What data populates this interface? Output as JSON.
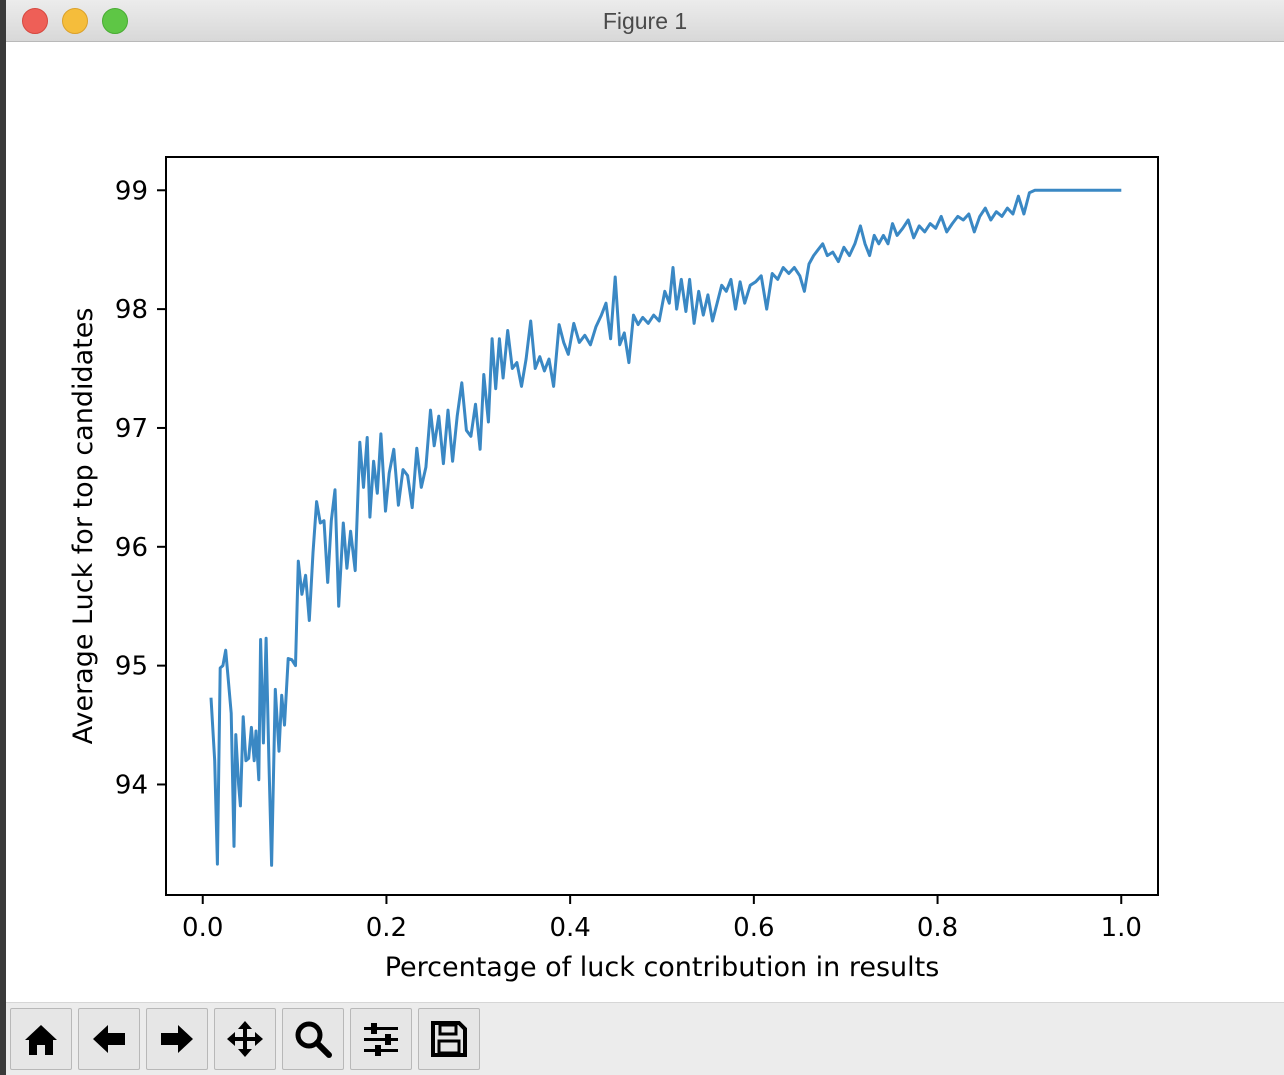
{
  "window": {
    "title": "Figure 1"
  },
  "toolbar": {
    "buttons": [
      "home-icon",
      "back-arrow-icon",
      "forward-arrow-icon",
      "pan-icon",
      "zoom-icon",
      "configure-subplots-icon",
      "save-icon"
    ]
  },
  "colors": {
    "line": "#3a88c4",
    "axes": "#000000"
  },
  "chart_data": {
    "type": "line",
    "xlabel": "Percentage of luck contribution in results",
    "ylabel": "Average Luck for top candidates",
    "xlim": [
      -0.04,
      1.04
    ],
    "ylim": [
      93.07,
      99.28
    ],
    "xticks": [
      0.0,
      0.2,
      0.4,
      0.6,
      0.8,
      1.0
    ],
    "xtick_labels": [
      "0.0",
      "0.2",
      "0.4",
      "0.6",
      "0.8",
      "1.0"
    ],
    "yticks": [
      94,
      95,
      96,
      97,
      98,
      99
    ],
    "ytick_labels": [
      "94",
      "95",
      "96",
      "97",
      "98",
      "99"
    ],
    "grid": false,
    "series": [
      {
        "color": "#3a88c4",
        "points": [
          [
            0.009,
            94.73
          ],
          [
            0.013,
            94.2
          ],
          [
            0.016,
            93.33
          ],
          [
            0.019,
            94.98
          ],
          [
            0.022,
            95.0
          ],
          [
            0.025,
            95.13
          ],
          [
            0.031,
            94.6
          ],
          [
            0.034,
            93.48
          ],
          [
            0.036,
            94.42
          ],
          [
            0.039,
            94.0
          ],
          [
            0.041,
            93.82
          ],
          [
            0.044,
            94.57
          ],
          [
            0.047,
            94.2
          ],
          [
            0.05,
            94.22
          ],
          [
            0.053,
            94.48
          ],
          [
            0.056,
            94.2
          ],
          [
            0.058,
            94.45
          ],
          [
            0.061,
            94.04
          ],
          [
            0.063,
            95.22
          ],
          [
            0.066,
            94.35
          ],
          [
            0.069,
            95.23
          ],
          [
            0.072,
            94.2
          ],
          [
            0.075,
            93.32
          ],
          [
            0.079,
            94.8
          ],
          [
            0.083,
            94.28
          ],
          [
            0.086,
            94.75
          ],
          [
            0.089,
            94.5
          ],
          [
            0.093,
            95.06
          ],
          [
            0.097,
            95.05
          ],
          [
            0.101,
            95.0
          ],
          [
            0.104,
            95.88
          ],
          [
            0.108,
            95.6
          ],
          [
            0.112,
            95.76
          ],
          [
            0.116,
            95.38
          ],
          [
            0.12,
            95.95
          ],
          [
            0.124,
            96.38
          ],
          [
            0.128,
            96.2
          ],
          [
            0.132,
            96.22
          ],
          [
            0.136,
            95.7
          ],
          [
            0.14,
            96.22
          ],
          [
            0.144,
            96.48
          ],
          [
            0.148,
            95.5
          ],
          [
            0.153,
            96.2
          ],
          [
            0.157,
            95.82
          ],
          [
            0.161,
            96.13
          ],
          [
            0.166,
            95.8
          ],
          [
            0.171,
            96.88
          ],
          [
            0.175,
            96.5
          ],
          [
            0.179,
            96.92
          ],
          [
            0.182,
            96.25
          ],
          [
            0.186,
            96.72
          ],
          [
            0.19,
            96.45
          ],
          [
            0.194,
            96.95
          ],
          [
            0.199,
            96.3
          ],
          [
            0.203,
            96.62
          ],
          [
            0.208,
            96.82
          ],
          [
            0.213,
            96.35
          ],
          [
            0.218,
            96.65
          ],
          [
            0.223,
            96.6
          ],
          [
            0.228,
            96.33
          ],
          [
            0.233,
            96.83
          ],
          [
            0.238,
            96.5
          ],
          [
            0.243,
            96.67
          ],
          [
            0.248,
            97.15
          ],
          [
            0.252,
            96.85
          ],
          [
            0.257,
            97.1
          ],
          [
            0.262,
            96.7
          ],
          [
            0.267,
            97.15
          ],
          [
            0.272,
            96.72
          ],
          [
            0.277,
            97.1
          ],
          [
            0.282,
            97.38
          ],
          [
            0.287,
            96.98
          ],
          [
            0.292,
            96.93
          ],
          [
            0.297,
            97.2
          ],
          [
            0.302,
            96.82
          ],
          [
            0.306,
            97.45
          ],
          [
            0.311,
            97.05
          ],
          [
            0.315,
            97.75
          ],
          [
            0.319,
            97.33
          ],
          [
            0.323,
            97.75
          ],
          [
            0.327,
            97.42
          ],
          [
            0.332,
            97.82
          ],
          [
            0.337,
            97.5
          ],
          [
            0.342,
            97.55
          ],
          [
            0.347,
            97.35
          ],
          [
            0.352,
            97.58
          ],
          [
            0.357,
            97.9
          ],
          [
            0.362,
            97.5
          ],
          [
            0.367,
            97.6
          ],
          [
            0.372,
            97.48
          ],
          [
            0.377,
            97.58
          ],
          [
            0.382,
            97.35
          ],
          [
            0.388,
            97.87
          ],
          [
            0.393,
            97.72
          ],
          [
            0.398,
            97.62
          ],
          [
            0.404,
            97.88
          ],
          [
            0.41,
            97.72
          ],
          [
            0.416,
            97.78
          ],
          [
            0.422,
            97.7
          ],
          [
            0.428,
            97.85
          ],
          [
            0.434,
            97.95
          ],
          [
            0.439,
            98.05
          ],
          [
            0.444,
            97.75
          ],
          [
            0.449,
            98.27
          ],
          [
            0.454,
            97.7
          ],
          [
            0.459,
            97.8
          ],
          [
            0.464,
            97.55
          ],
          [
            0.469,
            97.95
          ],
          [
            0.474,
            97.87
          ],
          [
            0.479,
            97.93
          ],
          [
            0.485,
            97.88
          ],
          [
            0.491,
            97.95
          ],
          [
            0.497,
            97.9
          ],
          [
            0.503,
            98.15
          ],
          [
            0.508,
            98.05
          ],
          [
            0.512,
            98.35
          ],
          [
            0.516,
            98.0
          ],
          [
            0.521,
            98.25
          ],
          [
            0.526,
            97.98
          ],
          [
            0.53,
            98.25
          ],
          [
            0.535,
            97.88
          ],
          [
            0.54,
            98.15
          ],
          [
            0.545,
            97.95
          ],
          [
            0.55,
            98.12
          ],
          [
            0.555,
            97.9
          ],
          [
            0.56,
            98.05
          ],
          [
            0.565,
            98.2
          ],
          [
            0.57,
            98.15
          ],
          [
            0.575,
            98.25
          ],
          [
            0.58,
            98.0
          ],
          [
            0.585,
            98.23
          ],
          [
            0.59,
            98.05
          ],
          [
            0.596,
            98.2
          ],
          [
            0.602,
            98.23
          ],
          [
            0.608,
            98.28
          ],
          [
            0.614,
            98.0
          ],
          [
            0.62,
            98.3
          ],
          [
            0.626,
            98.25
          ],
          [
            0.632,
            98.35
          ],
          [
            0.638,
            98.3
          ],
          [
            0.644,
            98.35
          ],
          [
            0.65,
            98.28
          ],
          [
            0.655,
            98.15
          ],
          [
            0.66,
            98.38
          ],
          [
            0.665,
            98.45
          ],
          [
            0.67,
            98.5
          ],
          [
            0.675,
            98.55
          ],
          [
            0.68,
            98.45
          ],
          [
            0.686,
            98.48
          ],
          [
            0.692,
            98.4
          ],
          [
            0.698,
            98.52
          ],
          [
            0.704,
            98.45
          ],
          [
            0.71,
            98.55
          ],
          [
            0.716,
            98.7
          ],
          [
            0.721,
            98.55
          ],
          [
            0.726,
            98.45
          ],
          [
            0.731,
            98.62
          ],
          [
            0.736,
            98.55
          ],
          [
            0.741,
            98.62
          ],
          [
            0.746,
            98.55
          ],
          [
            0.751,
            98.72
          ],
          [
            0.756,
            98.62
          ],
          [
            0.762,
            98.68
          ],
          [
            0.768,
            98.75
          ],
          [
            0.774,
            98.6
          ],
          [
            0.78,
            98.7
          ],
          [
            0.786,
            98.65
          ],
          [
            0.792,
            98.72
          ],
          [
            0.798,
            98.68
          ],
          [
            0.804,
            98.78
          ],
          [
            0.81,
            98.65
          ],
          [
            0.816,
            98.72
          ],
          [
            0.822,
            98.78
          ],
          [
            0.828,
            98.75
          ],
          [
            0.834,
            98.8
          ],
          [
            0.84,
            98.65
          ],
          [
            0.846,
            98.78
          ],
          [
            0.852,
            98.85
          ],
          [
            0.858,
            98.75
          ],
          [
            0.864,
            98.82
          ],
          [
            0.87,
            98.78
          ],
          [
            0.876,
            98.85
          ],
          [
            0.882,
            98.8
          ],
          [
            0.888,
            98.95
          ],
          [
            0.894,
            98.8
          ],
          [
            0.9,
            98.98
          ],
          [
            0.906,
            99.0
          ],
          [
            0.912,
            99.0
          ],
          [
            0.95,
            99.0
          ],
          [
            0.99,
            99.0
          ],
          [
            1.0,
            99.0
          ]
        ]
      }
    ]
  }
}
